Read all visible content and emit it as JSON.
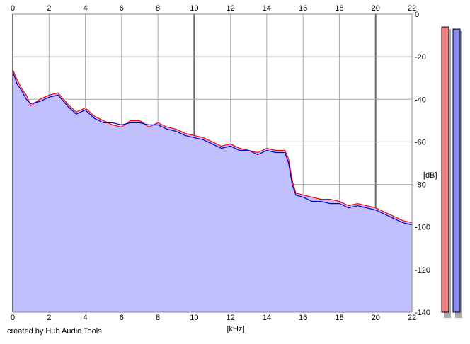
{
  "credit": "created by Hub Audio Tools",
  "chart_data": {
    "type": "area",
    "title": "",
    "xlabel": "[kHz]",
    "ylabel": "[dB]",
    "xlim": [
      0,
      22
    ],
    "ylim": [
      -140,
      0
    ],
    "x_ticks": [
      "0",
      "2",
      "4",
      "6",
      "8",
      "10",
      "12",
      "14",
      "16",
      "18",
      "20",
      "22"
    ],
    "y_ticks": [
      "0",
      "-20",
      "-40",
      "-60",
      "-80",
      "-100",
      "-120",
      "-140"
    ],
    "grid": true,
    "colors": {
      "fill": "#c0c0ff",
      "series_red": "#ff0000",
      "series_blue": "#0000cc",
      "meter_left": "#f08080",
      "meter_right": "#8888ee"
    },
    "series": [
      {
        "x": [
          0,
          0.25,
          0.5,
          0.75,
          1,
          1.5,
          2,
          2.5,
          3,
          3.5,
          4,
          4.5,
          5,
          5.5,
          6,
          6.5,
          7,
          7.5,
          8,
          8.5,
          9,
          9.5,
          10,
          10.5,
          11,
          11.5,
          12,
          12.5,
          13,
          13.5,
          14,
          14.5,
          15,
          15.2,
          15.4,
          15.6,
          16,
          16.5,
          17,
          17.5,
          18,
          18.5,
          19,
          19.5,
          20,
          20.5,
          21,
          21.5,
          22
        ],
        "values": [
          -26,
          -31,
          -35,
          -38,
          -43,
          -40,
          -38,
          -37,
          -42,
          -46,
          -44,
          -48,
          -50,
          -52,
          -53,
          -50,
          -50,
          -53,
          -51,
          -53,
          -54,
          -56,
          -57,
          -58,
          -60,
          -62,
          -61,
          -63,
          -64,
          -65,
          -63,
          -64,
          -64,
          -68,
          -78,
          -84,
          -85,
          -86,
          -87,
          -87,
          -88,
          -90,
          -89,
          -90,
          -91,
          -93,
          -95,
          -97,
          -98
        ]
      },
      {
        "x": [
          0,
          0.25,
          0.5,
          0.75,
          1,
          1.5,
          2,
          2.5,
          3,
          3.5,
          4,
          4.5,
          5,
          5.5,
          6,
          6.5,
          7,
          7.5,
          8,
          8.5,
          9,
          9.5,
          10,
          10.5,
          11,
          11.5,
          12,
          12.5,
          13,
          13.5,
          14,
          14.5,
          15,
          15.2,
          15.4,
          15.6,
          16,
          16.5,
          17,
          17.5,
          18,
          18.5,
          19,
          19.5,
          20,
          20.5,
          21,
          21.5,
          22
        ],
        "values": [
          -27,
          -33,
          -36,
          -40,
          -42,
          -41,
          -39,
          -38,
          -43,
          -47,
          -45,
          -49,
          -51,
          -51,
          -52,
          -51,
          -51,
          -52,
          -52,
          -54,
          -55,
          -57,
          -58,
          -59,
          -61,
          -63,
          -62,
          -64,
          -64,
          -66,
          -64,
          -65,
          -65,
          -70,
          -80,
          -85,
          -86,
          -88,
          -88,
          -89,
          -89,
          -91,
          -90,
          -91,
          -92,
          -94,
          -96,
          -98,
          -99
        ]
      }
    ],
    "meters": [
      {
        "peak_db": -6
      },
      {
        "peak_db": -7
      }
    ]
  }
}
